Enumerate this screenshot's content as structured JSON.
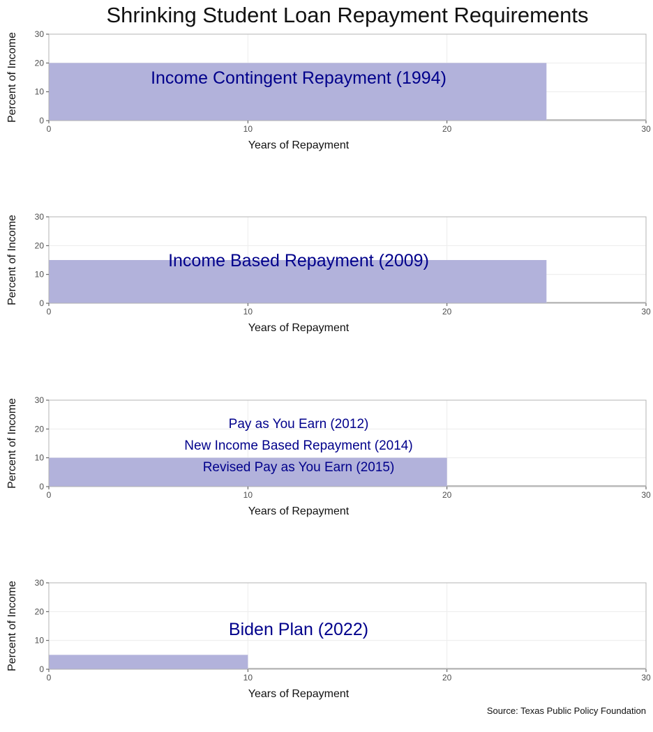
{
  "title": "Shrinking Student Loan Repayment Requirements",
  "source": "Source: Texas Public Policy Foundation",
  "colors": {
    "bar": "#b2b2db",
    "annotation": "#00008b",
    "panel_border": "#b3b3b3",
    "grid": "#ececec"
  },
  "chart_data": [
    {
      "type": "bar",
      "xlabel": "Years of Repayment",
      "ylabel": "Percent of Income",
      "xlim": [
        0,
        30
      ],
      "ylim": [
        0,
        30
      ],
      "xticks": [
        0,
        10,
        20,
        30
      ],
      "yticks": [
        0,
        10,
        20,
        30
      ],
      "grid": true,
      "bars": [
        {
          "x": [
            0,
            25
          ],
          "y": 20
        }
      ],
      "annotations": [
        {
          "text": "Income Contingent Repayment (1994)",
          "x": 15,
          "y": 15,
          "size": "large"
        }
      ]
    },
    {
      "type": "bar",
      "xlabel": "Years of Repayment",
      "ylabel": "Percent of Income",
      "xlim": [
        0,
        30
      ],
      "ylim": [
        0,
        30
      ],
      "xticks": [
        0,
        10,
        20,
        30
      ],
      "yticks": [
        0,
        10,
        20,
        30
      ],
      "grid": true,
      "bars": [
        {
          "x": [
            0,
            25
          ],
          "y": 15
        }
      ],
      "annotations": [
        {
          "text": "Income Based Repayment (2009)",
          "x": 15,
          "y": 15,
          "size": "large"
        }
      ]
    },
    {
      "type": "bar",
      "xlabel": "Years of Repayment",
      "ylabel": "Percent of Income",
      "xlim": [
        0,
        30
      ],
      "ylim": [
        0,
        30
      ],
      "xticks": [
        0,
        10,
        20,
        30
      ],
      "yticks": [
        0,
        10,
        20,
        30
      ],
      "grid": true,
      "bars": [
        {
          "x": [
            0,
            20
          ],
          "y": 10
        }
      ],
      "annotations": [
        {
          "text": "Pay as You Earn (2012)",
          "x": 15,
          "y": 22,
          "size": "medium"
        },
        {
          "text": "New Income Based Repayment (2014)",
          "x": 15,
          "y": 14.5,
          "size": "medium"
        },
        {
          "text": "Revised Pay as You Earn (2015)",
          "x": 15,
          "y": 7,
          "size": "medium"
        }
      ]
    },
    {
      "type": "bar",
      "xlabel": "Years of Repayment",
      "ylabel": "Percent of Income",
      "xlim": [
        0,
        30
      ],
      "ylim": [
        0,
        30
      ],
      "xticks": [
        0,
        10,
        20,
        30
      ],
      "yticks": [
        0,
        10,
        20,
        30
      ],
      "grid": true,
      "bars": [
        {
          "x": [
            0,
            10
          ],
          "y": 5
        }
      ],
      "annotations": [
        {
          "text": "Biden Plan (2022)",
          "x": 15,
          "y": 14,
          "size": "large"
        }
      ]
    }
  ]
}
